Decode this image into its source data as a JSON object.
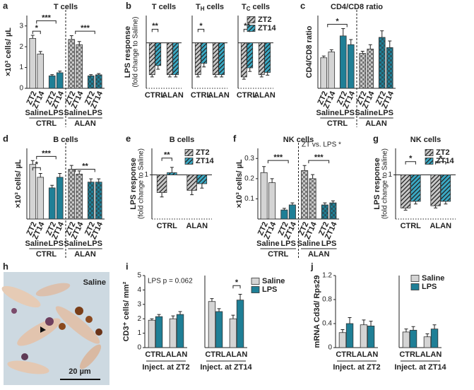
{
  "chart_data": [
    {
      "type": "bar",
      "label": "a",
      "title": "T cells",
      "ylabel": "×10³ cells/ µL",
      "ylim": [
        0,
        3.5
      ],
      "yticks": [
        0,
        1,
        2,
        3
      ],
      "categories": [
        "ZT2",
        "ZT14",
        "ZT2",
        "ZT14",
        "ZT2",
        "ZT14",
        "ZT2",
        "ZT14"
      ],
      "values": [
        2.4,
        1.65,
        0.6,
        0.75,
        2.35,
        2.1,
        0.6,
        0.65
      ],
      "errors": [
        0.15,
        0.12,
        0.06,
        0.08,
        0.18,
        0.15,
        0.06,
        0.06
      ],
      "colors": [
        "#d4d4d4",
        "#d4d4d4",
        "#1f7f96",
        "#1f7f96",
        "#c8c8c8",
        "#c8c8c8",
        "#1f7f96",
        "#1f7f96"
      ],
      "patterns": [
        "solid",
        "solid",
        "solid",
        "solid",
        "checker",
        "checker",
        "checker",
        "checker"
      ],
      "groups": [
        "Saline",
        "LPS",
        "Saline",
        "LPS"
      ],
      "conditions": [
        "CTRL",
        "ALAN"
      ],
      "significance": [
        "*",
        "***",
        "***"
      ]
    },
    {
      "type": "grouped_bar",
      "label": "b",
      "title": "T cells",
      "ylabel": [
        "LPS response",
        "(fold change to Saline)"
      ],
      "ylim": [
        0,
        1.6
      ],
      "baseline": 1,
      "categories": [
        "CTRL",
        "ALAN"
      ],
      "series": [
        {
          "color": "#c8c8c8",
          "pattern": "hatch",
          "values": [
            0.3,
            0.3
          ],
          "errors": [
            0.05,
            0.05
          ]
        },
        {
          "color": "#3aa9c4",
          "pattern": "hatch",
          "values": [
            0.5,
            0.3
          ],
          "errors": [
            0.08,
            0.05
          ]
        }
      ],
      "significance": [
        "**"
      ]
    },
    {
      "type": "grouped_bar",
      "title": "T",
      "title_sub": "H",
      "title_suffix": " cells",
      "ylim": [
        0,
        1.6
      ],
      "baseline": 1,
      "categories": [
        "CTRL",
        "ALAN"
      ],
      "series": [
        {
          "color": "#c8c8c8",
          "pattern": "hatch",
          "values": [
            0.3,
            0.3
          ],
          "errors": [
            0.05,
            0.05
          ]
        },
        {
          "color": "#3aa9c4",
          "pattern": "hatch",
          "values": [
            0.55,
            0.3
          ],
          "errors": [
            0.08,
            0.05
          ]
        }
      ],
      "significance": [
        "*"
      ]
    },
    {
      "type": "grouped_bar",
      "title": "T",
      "title_sub": "C",
      "title_suffix": " cells",
      "ylim": [
        0,
        1.6
      ],
      "baseline": 1,
      "categories": [
        "CTRL",
        "ALAN"
      ],
      "legend": true,
      "series": [
        {
          "name": "ZT2",
          "color": "#c8c8c8",
          "pattern": "hatch",
          "values": [
            0.25,
            0.3
          ],
          "errors": [
            0.05,
            0.05
          ]
        },
        {
          "name": "ZT14",
          "color": "#3aa9c4",
          "pattern": "hatch",
          "values": [
            0.45,
            0.35
          ],
          "errors": [
            0.08,
            0.06
          ]
        }
      ],
      "significance": [
        "**"
      ]
    },
    {
      "type": "bar",
      "label": "c",
      "title": "CD4/CD8 ratio",
      "ylabel": "CD4/CD8 ratio",
      "ylim": [
        0,
        5
      ],
      "categories": [
        "ZT2",
        "ZT14",
        "ZT2",
        "ZT14",
        "ZT2",
        "ZT14",
        "ZT2",
        "ZT14"
      ],
      "values": [
        2.1,
        2.5,
        3.6,
        3.0,
        2.4,
        2.7,
        3.5,
        2.8
      ],
      "errors": [
        0.12,
        0.15,
        0.5,
        0.35,
        0.15,
        0.3,
        0.45,
        0.45
      ],
      "colors": [
        "#d4d4d4",
        "#d4d4d4",
        "#1f7f96",
        "#1f7f96",
        "#c8c8c8",
        "#c8c8c8",
        "#1f7f96",
        "#1f7f96"
      ],
      "patterns": [
        "solid",
        "solid",
        "solid",
        "solid",
        "checker",
        "checker",
        "checker",
        "checker"
      ],
      "groups": [
        "Saline",
        "LPS",
        "Saline",
        "LPS"
      ],
      "conditions": [
        "CTRL",
        "ALAN"
      ],
      "significance": [
        "*"
      ]
    },
    {
      "type": "bar",
      "label": "d",
      "title": "B cells",
      "ylabel": "×10³ cells/ µL",
      "ylim": [
        0,
        2.2
      ],
      "categories": [
        "ZT2",
        "ZT14",
        "ZT2",
        "ZT14",
        "ZT2",
        "ZT14",
        "ZT2",
        "ZT14"
      ],
      "values": [
        1.7,
        1.3,
        0.97,
        1.3,
        1.55,
        1.4,
        1.15,
        1.15
      ],
      "errors": [
        0.12,
        0.12,
        0.08,
        0.12,
        0.12,
        0.1,
        0.1,
        0.1
      ],
      "colors": [
        "#d4d4d4",
        "#d4d4d4",
        "#1f7f96",
        "#1f7f96",
        "#c8c8c8",
        "#c8c8c8",
        "#1f7f96",
        "#1f7f96"
      ],
      "patterns": [
        "solid",
        "solid",
        "solid",
        "solid",
        "checker",
        "checker",
        "checker",
        "checker"
      ],
      "groups": [
        "Saline",
        "LPS",
        "Saline",
        "LPS"
      ],
      "conditions": [
        "CTRL",
        "ALAN"
      ],
      "significance": [
        "*",
        "***",
        "**"
      ]
    },
    {
      "type": "grouped_bar",
      "label": "e",
      "title": "B cells",
      "ylabel": [
        "LPS response",
        "(fold change to Saline)"
      ],
      "ylim": [
        0,
        1.6
      ],
      "yticks": [
        1
      ],
      "baseline": 1,
      "categories": [
        "CTRL",
        "ALAN"
      ],
      "legend": true,
      "series": [
        {
          "name": "ZT2",
          "color": "#c8c8c8",
          "pattern": "hatch",
          "values": [
            0.6,
            0.65
          ],
          "errors": [
            0.1,
            0.1
          ]
        },
        {
          "name": "ZT14",
          "color": "#3aa9c4",
          "pattern": "hatch",
          "values": [
            1.05,
            0.8
          ],
          "errors": [
            0.12,
            0.1
          ]
        }
      ],
      "significance": [
        "**"
      ]
    },
    {
      "type": "bar",
      "label": "f",
      "title": "NK cells",
      "ylabel": "×10³ cells/ µL",
      "ylim": [
        0,
        0.35
      ],
      "yticks": [
        0.1,
        0.2,
        0.3
      ],
      "annotation": "ZT vs. LPS *",
      "categories": [
        "ZT2",
        "ZT14",
        "ZT2",
        "ZT14",
        "ZT2",
        "ZT14",
        "ZT2",
        "ZT14"
      ],
      "values": [
        0.23,
        0.18,
        0.045,
        0.07,
        0.24,
        0.2,
        0.07,
        0.08
      ],
      "errors": [
        0.03,
        0.02,
        0.008,
        0.01,
        0.025,
        0.02,
        0.01,
        0.01
      ],
      "colors": [
        "#d4d4d4",
        "#d4d4d4",
        "#1f7f96",
        "#1f7f96",
        "#c8c8c8",
        "#c8c8c8",
        "#1f7f96",
        "#1f7f96"
      ],
      "patterns": [
        "solid",
        "solid",
        "solid",
        "solid",
        "checker",
        "checker",
        "checker",
        "checker"
      ],
      "groups": [
        "Saline",
        "LPS",
        "Saline",
        "LPS"
      ],
      "conditions": [
        "CTRL",
        "ALAN"
      ],
      "significance": [
        "***",
        "***"
      ]
    },
    {
      "type": "grouped_bar",
      "label": "g",
      "title": "NK cells",
      "ylabel": [
        "LPS response",
        "(fold change to Saline)"
      ],
      "ylim": [
        0,
        1.6
      ],
      "yticks": [
        1
      ],
      "baseline": 1,
      "categories": [
        "CTRL",
        "ALAN"
      ],
      "legend": true,
      "series": [
        {
          "name": "ZT2",
          "color": "#c8c8c8",
          "pattern": "hatch",
          "values": [
            0.25,
            0.3
          ],
          "errors": [
            0.05,
            0.05
          ]
        },
        {
          "name": "ZT14",
          "color": "#3aa9c4",
          "pattern": "hatch",
          "values": [
            0.4,
            0.4
          ],
          "errors": [
            0.06,
            0.06
          ]
        }
      ],
      "significance": [
        "*",
        "*"
      ]
    },
    {
      "type": "image",
      "label": "h",
      "caption": "Saline",
      "scale_bar": "20 µm"
    },
    {
      "type": "grouped_bar",
      "label": "i",
      "ylabel": "CD3⁺ cells/ mm²",
      "ylim": [
        0,
        5
      ],
      "yticks": [
        0,
        1,
        2,
        3,
        4,
        5
      ],
      "categories": [
        "CTRL",
        "ALAN"
      ],
      "subtitle": "Inject. at ZT2",
      "annotation": "LPS p = 0.062",
      "series": [
        {
          "color": "#d4d4d4",
          "values": [
            1.9,
            2.0
          ],
          "errors": [
            0.1,
            0.2
          ]
        },
        {
          "color": "#1f7f96",
          "values": [
            2.15,
            2.3
          ],
          "errors": [
            0.15,
            0.2
          ]
        }
      ]
    },
    {
      "type": "grouped_bar",
      "ylim": [
        0,
        5
      ],
      "categories": [
        "CTRL",
        "ALAN"
      ],
      "subtitle": "Inject. at ZT14",
      "legend": true,
      "series": [
        {
          "name": "Saline",
          "color": "#d4d4d4",
          "values": [
            3.2,
            2.0
          ],
          "errors": [
            0.2,
            0.25
          ]
        },
        {
          "name": "LPS",
          "color": "#1f7f96",
          "values": [
            2.5,
            3.3
          ],
          "errors": [
            0.2,
            0.4
          ]
        }
      ],
      "significance": [
        "*"
      ]
    },
    {
      "type": "grouped_bar",
      "label": "j",
      "ylabel": "mRNA Cd3d/ Rps29",
      "ylim": [
        0,
        1.2
      ],
      "yticks": [
        0,
        0.4,
        0.8,
        1.2
      ],
      "categories": [
        "CTRL",
        "ALAN"
      ],
      "subtitle": "Inject. at ZT2",
      "series": [
        {
          "color": "#d4d4d4",
          "values": [
            0.25,
            0.38
          ],
          "errors": [
            0.05,
            0.08
          ]
        },
        {
          "color": "#1f7f96",
          "values": [
            0.4,
            0.36
          ],
          "errors": [
            0.1,
            0.08
          ]
        }
      ]
    },
    {
      "type": "grouped_bar",
      "ylim": [
        0,
        1.2
      ],
      "categories": [
        "CTRL",
        "ALAN"
      ],
      "subtitle": "Inject. at ZT14",
      "legend": true,
      "series": [
        {
          "name": "Saline",
          "color": "#d4d4d4",
          "values": [
            0.26,
            0.18
          ],
          "errors": [
            0.05,
            0.05
          ]
        },
        {
          "name": "LPS",
          "color": "#1f7f96",
          "values": [
            0.29,
            0.31
          ],
          "errors": [
            0.06,
            0.07
          ]
        }
      ]
    }
  ]
}
